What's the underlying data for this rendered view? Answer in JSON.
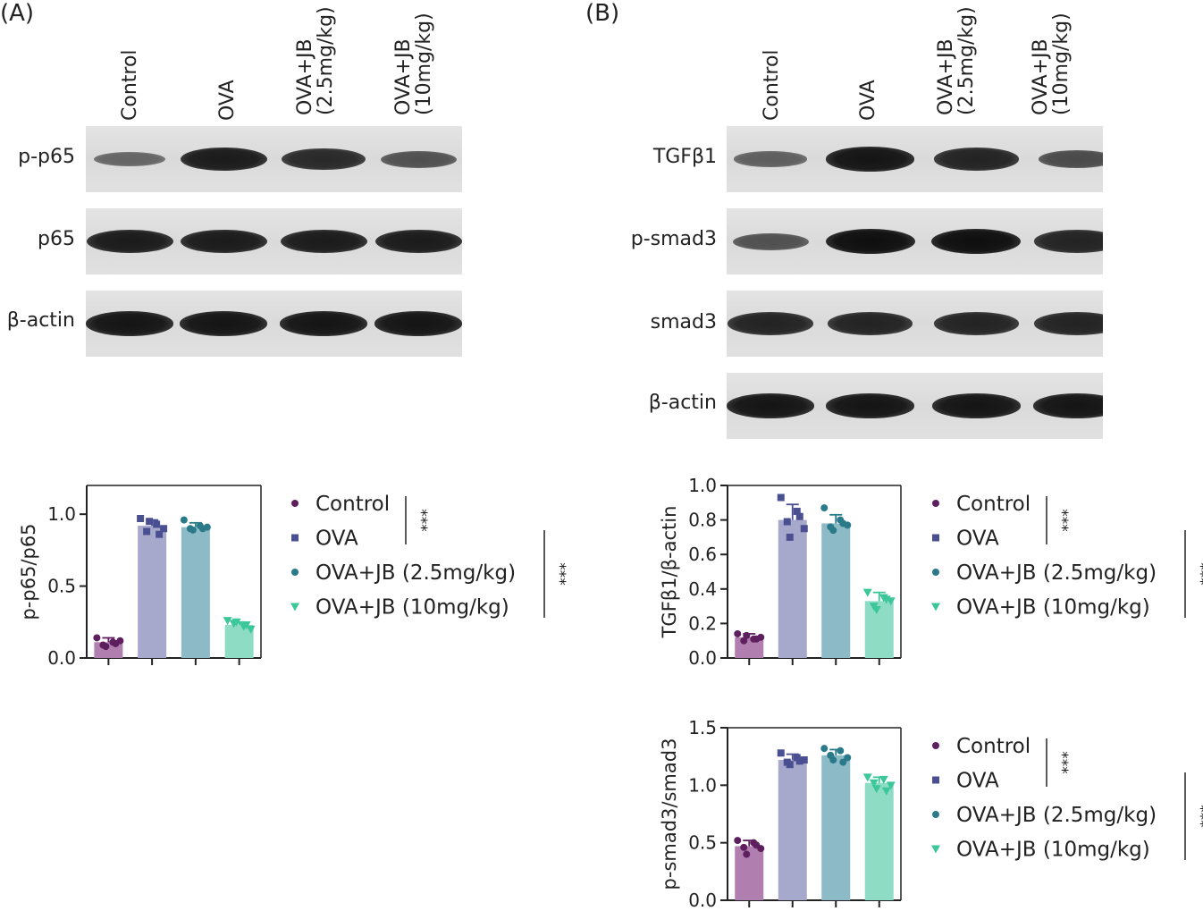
{
  "panels": {
    "A": {
      "letter": "(A)",
      "lanes": [
        {
          "line1": "Control",
          "line2": ""
        },
        {
          "line1": "OVA",
          "line2": ""
        },
        {
          "line1": "OVA+JB",
          "line2": "(2.5mg/kg)"
        },
        {
          "line1": "OVA+JB",
          "line2": "(10mg/kg)"
        }
      ],
      "blots": [
        {
          "label": "p-p65",
          "intensity": [
            0.35,
            0.9,
            0.8,
            0.5
          ]
        },
        {
          "label": "p65",
          "intensity": [
            0.9,
            0.9,
            0.9,
            0.9
          ]
        },
        {
          "label": "β-actin",
          "intensity": [
            0.95,
            0.95,
            0.95,
            0.95
          ]
        }
      ]
    },
    "B": {
      "letter": "(B)",
      "lanes": [
        {
          "line1": "Control",
          "line2": ""
        },
        {
          "line1": "OVA",
          "line2": ""
        },
        {
          "line1": "OVA+JB",
          "line2": "(2.5mg/kg)"
        },
        {
          "line1": "OVA+JB",
          "line2": "(10mg/kg)"
        }
      ],
      "blots": [
        {
          "label": "TGFβ1",
          "intensity": [
            0.4,
            0.95,
            0.85,
            0.55
          ]
        },
        {
          "label": "p-smad3",
          "intensity": [
            0.5,
            1.0,
            1.0,
            0.85
          ]
        },
        {
          "label": "smad3",
          "intensity": [
            0.85,
            0.85,
            0.85,
            0.85
          ]
        },
        {
          "label": "β-actin",
          "intensity": [
            0.95,
            0.95,
            0.95,
            0.95
          ]
        }
      ]
    }
  },
  "legend": {
    "items": [
      "Control",
      "OVA",
      "OVA+JB (2.5mg/kg)",
      "OVA+JB (10mg/kg)"
    ],
    "sig": "***"
  },
  "colors": {
    "fill": [
      "#b07fb0",
      "#a6a9cb",
      "#8cbac6",
      "#8fdcc4"
    ],
    "marker": [
      "#5e1f5e",
      "#4a4f92",
      "#2b7a8a",
      "#3cc79a"
    ]
  },
  "chart_data": [
    {
      "type": "bar",
      "id": "p65",
      "ylabel": "p-p65/p65",
      "ylim": [
        0,
        1.2
      ],
      "yticks": [
        "0.0",
        "0.5",
        "1.0"
      ],
      "ytick_values": [
        0,
        0.5,
        1.0
      ],
      "categories": [
        "Control",
        "OVA",
        "OVA+JB (2.5mg/kg)",
        "OVA+JB (10mg/kg)"
      ],
      "values": [
        0.11,
        0.92,
        0.91,
        0.23
      ],
      "errors": [
        0.03,
        0.04,
        0.03,
        0.02
      ],
      "points": [
        [
          0.14,
          0.11,
          0.09,
          0.12,
          0.08,
          0.1
        ],
        [
          0.97,
          0.93,
          0.88,
          0.9,
          0.95,
          0.86
        ],
        [
          0.96,
          0.92,
          0.9,
          0.91,
          0.89,
          0.9
        ],
        [
          0.26,
          0.22,
          0.24,
          0.2,
          0.25,
          0.23
        ]
      ]
    },
    {
      "type": "bar",
      "id": "tgfb1",
      "ylabel": "TGFβ1/β-actin",
      "ylim": [
        0,
        1.0
      ],
      "yticks": [
        "0.0",
        "0.2",
        "0.4",
        "0.6",
        "0.8",
        "1.0"
      ],
      "ytick_values": [
        0,
        0.2,
        0.4,
        0.6,
        0.8,
        1.0
      ],
      "categories": [
        "Control",
        "OVA",
        "OVA+JB (2.5mg/kg)",
        "OVA+JB (10mg/kg)"
      ],
      "values": [
        0.12,
        0.8,
        0.78,
        0.33
      ],
      "errors": [
        0.02,
        0.09,
        0.05,
        0.05
      ],
      "points": [
        [
          0.14,
          0.11,
          0.1,
          0.12,
          0.13,
          0.11
        ],
        [
          0.93,
          0.85,
          0.79,
          0.75,
          0.7,
          0.82
        ],
        [
          0.87,
          0.8,
          0.76,
          0.77,
          0.74,
          0.78
        ],
        [
          0.38,
          0.35,
          0.3,
          0.33,
          0.28,
          0.34
        ]
      ]
    },
    {
      "type": "bar",
      "id": "psmad3",
      "ylabel": "p-smad3/smad3",
      "ylim": [
        0,
        1.5
      ],
      "yticks": [
        "0.0",
        "0.5",
        "1.0",
        "1.5"
      ],
      "ytick_values": [
        0,
        0.5,
        1.0,
        1.5
      ],
      "categories": [
        "Control",
        "OVA",
        "OVA+JB (2.5mg/kg)",
        "OVA+JB (10mg/kg)"
      ],
      "values": [
        0.47,
        1.22,
        1.26,
        1.02
      ],
      "errors": [
        0.05,
        0.05,
        0.05,
        0.05
      ],
      "points": [
        [
          0.52,
          0.5,
          0.46,
          0.45,
          0.4,
          0.48
        ],
        [
          1.28,
          1.24,
          1.2,
          1.22,
          1.18,
          1.21
        ],
        [
          1.32,
          1.3,
          1.26,
          1.24,
          1.22,
          1.2
        ],
        [
          1.07,
          1.05,
          1.02,
          1.0,
          0.97,
          0.95
        ]
      ]
    }
  ]
}
